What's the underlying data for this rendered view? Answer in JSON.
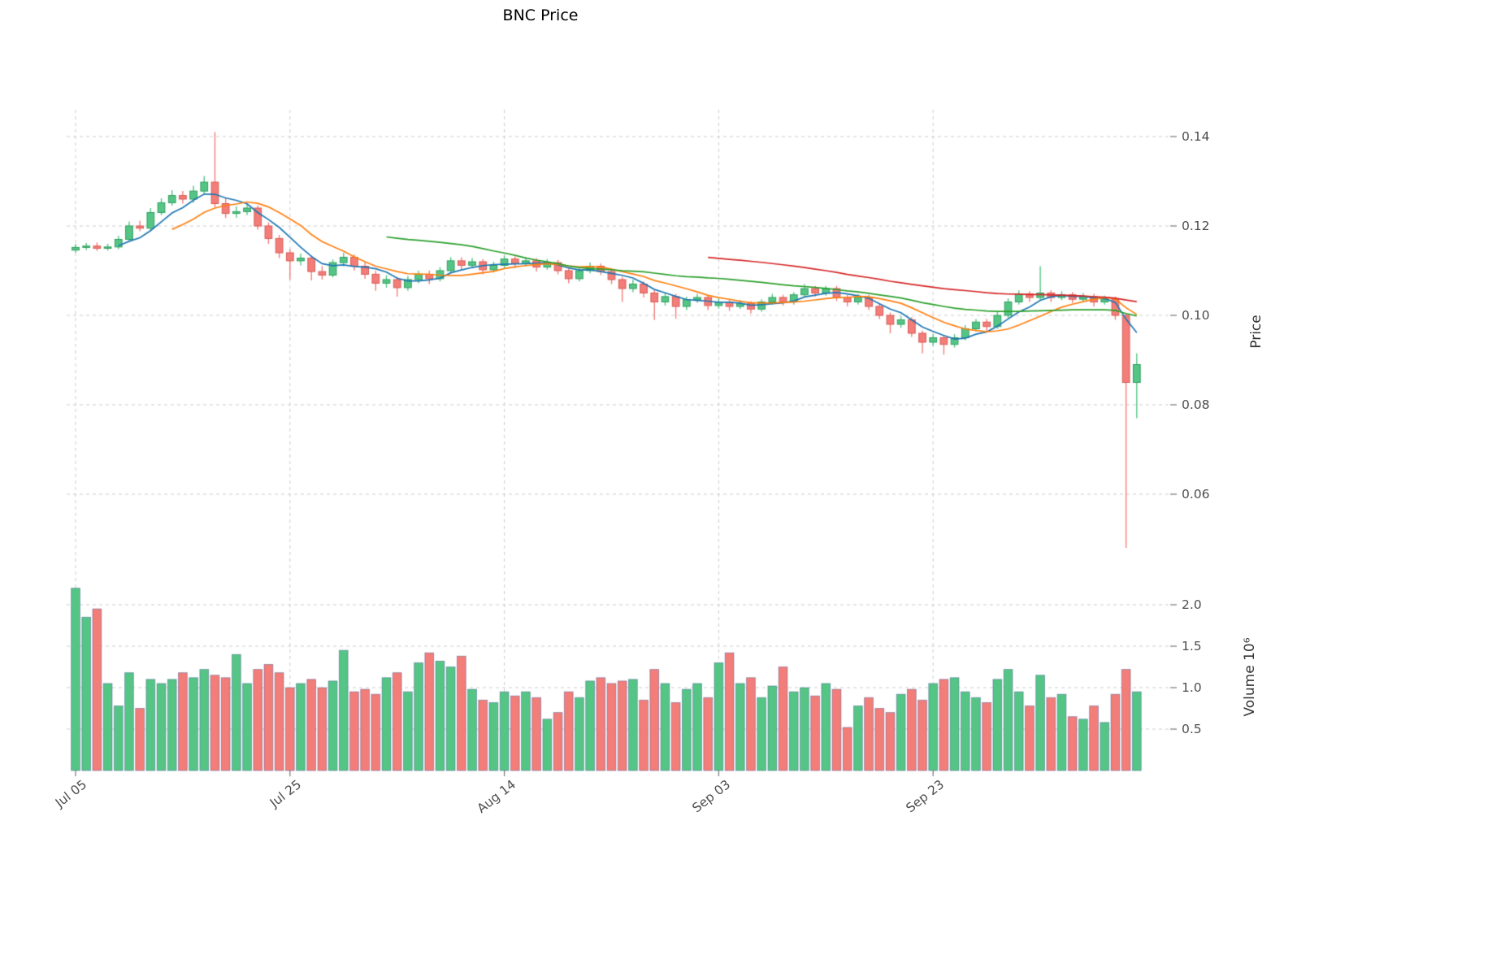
{
  "chart_data": {
    "type": "candlestick",
    "title": "BNC Price",
    "legend_position": "none",
    "grid": "dashed",
    "price_axis": {
      "label": "Price",
      "side": "right",
      "ticks": [
        {
          "value": 0.14,
          "label": "0.14"
        },
        {
          "value": 0.12,
          "label": "0.12"
        },
        {
          "value": 0.1,
          "label": "0.10"
        },
        {
          "value": 0.08,
          "label": "0.08"
        },
        {
          "value": 0.06,
          "label": "0.06"
        }
      ]
    },
    "volume_axis": {
      "label": "Volume 10⁶",
      "side": "right",
      "unit": 1000000,
      "ticks": [
        {
          "value": 2.0,
          "label": "2.0"
        },
        {
          "value": 1.5,
          "label": "1.5"
        },
        {
          "value": 1.0,
          "label": "1.0"
        },
        {
          "value": 0.5,
          "label": "0.5"
        }
      ]
    },
    "x_axis": {
      "ticks": [
        {
          "index": 0,
          "label": "Jul 05"
        },
        {
          "index": 20,
          "label": "Jul 25"
        },
        {
          "index": 40,
          "label": "Aug 14"
        },
        {
          "index": 60,
          "label": "Sep 03"
        },
        {
          "index": 80,
          "label": "Sep 23"
        }
      ]
    },
    "moving_averages": [
      {
        "period": 5,
        "color": "#1f77b4"
      },
      {
        "period": 10,
        "color": "#ff7f0e"
      },
      {
        "period": 30,
        "color": "#2ca02c"
      },
      {
        "period": 60,
        "color": "#d62728"
      }
    ],
    "colors": {
      "up": "#55c585",
      "down": "#f37d78",
      "up_edge": "#2f9e5e",
      "down_edge": "#d85a55",
      "volume_edge": "rgba(50,70,140,0.45)",
      "grid": "#cdcdcd",
      "tick": "#777777",
      "text": "#4d4d4d"
    },
    "ohlc": [
      [
        0.1146,
        0.116,
        0.114,
        0.1152
      ],
      [
        0.1152,
        0.1162,
        0.1146,
        0.1155
      ],
      [
        0.1155,
        0.1163,
        0.1144,
        0.115
      ],
      [
        0.115,
        0.116,
        0.1145,
        0.1153
      ],
      [
        0.1153,
        0.1178,
        0.1148,
        0.117
      ],
      [
        0.117,
        0.121,
        0.1165,
        0.12
      ],
      [
        0.12,
        0.1212,
        0.1188,
        0.1195
      ],
      [
        0.1195,
        0.124,
        0.119,
        0.123
      ],
      [
        0.123,
        0.1262,
        0.1224,
        0.1252
      ],
      [
        0.1252,
        0.128,
        0.1245,
        0.1268
      ],
      [
        0.1268,
        0.1278,
        0.125,
        0.126
      ],
      [
        0.126,
        0.129,
        0.1252,
        0.1278
      ],
      [
        0.1278,
        0.1312,
        0.127,
        0.1298
      ],
      [
        0.1298,
        0.141,
        0.1242,
        0.125
      ],
      [
        0.125,
        0.1262,
        0.1218,
        0.1228
      ],
      [
        0.1228,
        0.1244,
        0.1218,
        0.1232
      ],
      [
        0.1232,
        0.125,
        0.1224,
        0.124
      ],
      [
        0.124,
        0.1246,
        0.1192,
        0.12
      ],
      [
        0.12,
        0.1208,
        0.116,
        0.1172
      ],
      [
        0.1172,
        0.118,
        0.1128,
        0.114
      ],
      [
        0.114,
        0.1148,
        0.108,
        0.1122
      ],
      [
        0.1122,
        0.1138,
        0.1112,
        0.1128
      ],
      [
        0.1128,
        0.1134,
        0.1078,
        0.1098
      ],
      [
        0.1098,
        0.111,
        0.108,
        0.109
      ],
      [
        0.109,
        0.1125,
        0.1085,
        0.1118
      ],
      [
        0.1118,
        0.114,
        0.111,
        0.113
      ],
      [
        0.113,
        0.1136,
        0.11,
        0.111
      ],
      [
        0.111,
        0.1118,
        0.1082,
        0.1092
      ],
      [
        0.1092,
        0.11,
        0.1055,
        0.1072
      ],
      [
        0.1072,
        0.109,
        0.1062,
        0.108
      ],
      [
        0.108,
        0.1086,
        0.1042,
        0.1062
      ],
      [
        0.1062,
        0.1088,
        0.1055,
        0.108
      ],
      [
        0.108,
        0.11,
        0.1072,
        0.1092
      ],
      [
        0.1092,
        0.11,
        0.107,
        0.1082
      ],
      [
        0.1082,
        0.1108,
        0.1076,
        0.11
      ],
      [
        0.11,
        0.113,
        0.1094,
        0.1122
      ],
      [
        0.1122,
        0.113,
        0.1102,
        0.1112
      ],
      [
        0.1112,
        0.1128,
        0.1105,
        0.112
      ],
      [
        0.112,
        0.1126,
        0.1092,
        0.1102
      ],
      [
        0.1102,
        0.112,
        0.1096,
        0.1112
      ],
      [
        0.1112,
        0.1134,
        0.1106,
        0.1126
      ],
      [
        0.1126,
        0.1132,
        0.1106,
        0.1116
      ],
      [
        0.1116,
        0.113,
        0.111,
        0.1122
      ],
      [
        0.1122,
        0.1128,
        0.1098,
        0.1108
      ],
      [
        0.1108,
        0.1126,
        0.1102,
        0.1118
      ],
      [
        0.1118,
        0.1124,
        0.1092,
        0.11
      ],
      [
        0.11,
        0.1106,
        0.1072,
        0.1082
      ],
      [
        0.1082,
        0.1106,
        0.1076,
        0.11
      ],
      [
        0.11,
        0.1118,
        0.1094,
        0.111
      ],
      [
        0.111,
        0.1116,
        0.109,
        0.1098
      ],
      [
        0.1098,
        0.1104,
        0.107,
        0.108
      ],
      [
        0.108,
        0.1086,
        0.103,
        0.106
      ],
      [
        0.106,
        0.108,
        0.1052,
        0.107
      ],
      [
        0.107,
        0.1076,
        0.104,
        0.105
      ],
      [
        0.105,
        0.1056,
        0.099,
        0.103
      ],
      [
        0.103,
        0.105,
        0.1022,
        0.1042
      ],
      [
        0.1042,
        0.1048,
        0.0993,
        0.102
      ],
      [
        0.102,
        0.1042,
        0.1012,
        0.1035
      ],
      [
        0.1035,
        0.1048,
        0.1028,
        0.104
      ],
      [
        0.104,
        0.1046,
        0.1012,
        0.1022
      ],
      [
        0.1022,
        0.1038,
        0.1015,
        0.103
      ],
      [
        0.103,
        0.1036,
        0.101,
        0.102
      ],
      [
        0.102,
        0.1034,
        0.1014,
        0.1026
      ],
      [
        0.1026,
        0.1032,
        0.1004,
        0.1014
      ],
      [
        0.1014,
        0.1036,
        0.1008,
        0.103
      ],
      [
        0.103,
        0.1048,
        0.1024,
        0.104
      ],
      [
        0.104,
        0.1046,
        0.1022,
        0.103
      ],
      [
        0.103,
        0.1052,
        0.1024,
        0.1046
      ],
      [
        0.1046,
        0.107,
        0.104,
        0.106
      ],
      [
        0.106,
        0.1066,
        0.1042,
        0.105
      ],
      [
        0.105,
        0.1066,
        0.1044,
        0.106
      ],
      [
        0.106,
        0.1066,
        0.1032,
        0.104
      ],
      [
        0.104,
        0.1046,
        0.102,
        0.103
      ],
      [
        0.103,
        0.1048,
        0.1024,
        0.104
      ],
      [
        0.104,
        0.1046,
        0.1012,
        0.102
      ],
      [
        0.102,
        0.1026,
        0.0992,
        0.1
      ],
      [
        0.1,
        0.1006,
        0.096,
        0.098
      ],
      [
        0.098,
        0.0998,
        0.0972,
        0.099
      ],
      [
        0.099,
        0.0996,
        0.0952,
        0.096
      ],
      [
        0.096,
        0.0966,
        0.0915,
        0.094
      ],
      [
        0.094,
        0.0958,
        0.0932,
        0.095
      ],
      [
        0.095,
        0.0956,
        0.0912,
        0.0935
      ],
      [
        0.0935,
        0.0958,
        0.0928,
        0.095
      ],
      [
        0.095,
        0.0978,
        0.0944,
        0.097
      ],
      [
        0.097,
        0.0992,
        0.0964,
        0.0985
      ],
      [
        0.0985,
        0.0992,
        0.0966,
        0.0975
      ],
      [
        0.0975,
        0.1008,
        0.097,
        0.1
      ],
      [
        0.1,
        0.1038,
        0.0994,
        0.103
      ],
      [
        0.103,
        0.1056,
        0.1024,
        0.1048
      ],
      [
        0.1048,
        0.1054,
        0.103,
        0.104
      ],
      [
        0.104,
        0.111,
        0.1034,
        0.105
      ],
      [
        0.105,
        0.1056,
        0.103,
        0.104
      ],
      [
        0.104,
        0.1054,
        0.1034,
        0.1046
      ],
      [
        0.1046,
        0.1052,
        0.1028,
        0.1036
      ],
      [
        0.1036,
        0.105,
        0.103,
        0.1042
      ],
      [
        0.1042,
        0.1048,
        0.102,
        0.103
      ],
      [
        0.103,
        0.1044,
        0.1024,
        0.1036
      ],
      [
        0.1036,
        0.1042,
        0.099,
        0.1
      ],
      [
        0.1,
        0.1005,
        0.048,
        0.085
      ],
      [
        0.085,
        0.0915,
        0.077,
        0.089
      ]
    ],
    "volumes": [
      2.2,
      1.85,
      1.95,
      1.05,
      0.78,
      1.18,
      0.75,
      1.1,
      1.05,
      1.1,
      1.18,
      1.12,
      1.22,
      1.15,
      1.12,
      1.4,
      1.05,
      1.22,
      1.28,
      1.18,
      1.0,
      1.05,
      1.1,
      1.0,
      1.08,
      1.45,
      0.95,
      0.98,
      0.92,
      1.12,
      1.18,
      0.95,
      1.3,
      1.42,
      1.32,
      1.25,
      1.38,
      0.98,
      0.85,
      0.82,
      0.95,
      0.9,
      0.95,
      0.88,
      0.62,
      0.7,
      0.95,
      0.88,
      1.08,
      1.12,
      1.05,
      1.08,
      1.1,
      0.85,
      1.22,
      1.05,
      0.82,
      0.98,
      1.05,
      0.88,
      1.3,
      1.42,
      1.05,
      1.12,
      0.88,
      1.02,
      1.25,
      0.95,
      1.0,
      0.9,
      1.05,
      0.98,
      0.52,
      0.78,
      0.88,
      0.75,
      0.7,
      0.92,
      0.98,
      0.85,
      1.05,
      1.1,
      1.12,
      0.95,
      0.88,
      0.82,
      1.1,
      1.22,
      0.95,
      0.78,
      1.15,
      0.88,
      0.92,
      0.65,
      0.62,
      0.78,
      0.58,
      0.92,
      1.22,
      0.95
    ]
  }
}
